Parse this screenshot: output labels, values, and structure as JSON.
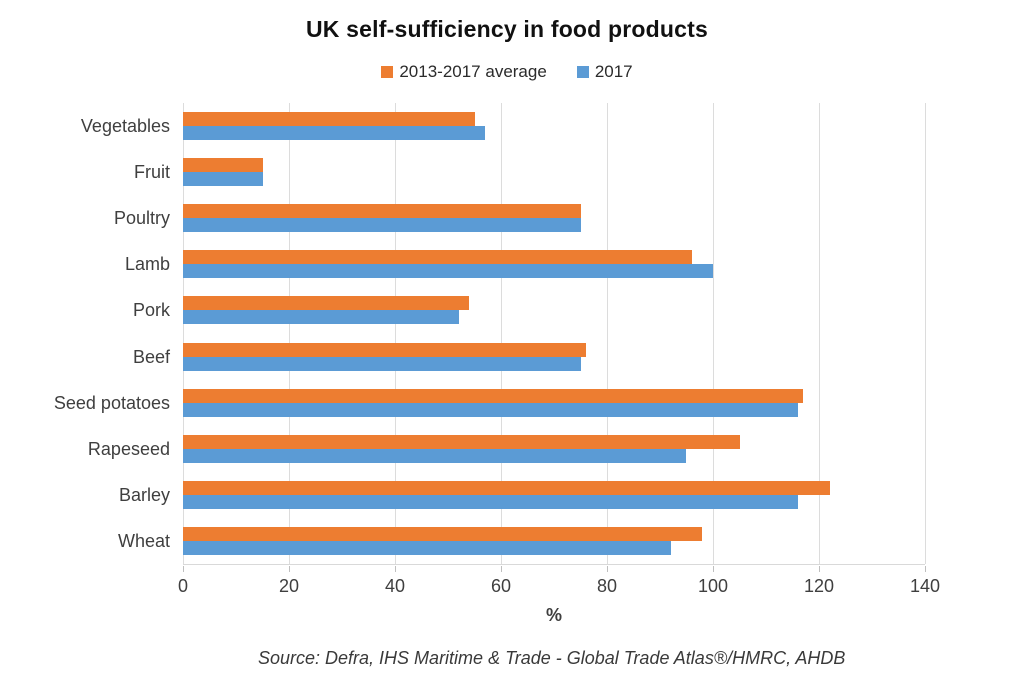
{
  "source": "Source: Defra, IHS Maritime & Trade - Global Trade Atlas®/HMRC, AHDB",
  "chart_data": {
    "type": "bar",
    "orientation": "horizontal",
    "title": "UK self-sufficiency in food products",
    "categories": [
      "Vegetables",
      "Fruit",
      "Poultry",
      "Lamb",
      "Pork",
      "Beef",
      "Seed potatoes",
      "Rapeseed",
      "Barley",
      "Wheat"
    ],
    "series": [
      {
        "name": "2013-2017 average",
        "color": "#ED7D31",
        "values": [
          55,
          15,
          75,
          96,
          54,
          76,
          117,
          105,
          122,
          98
        ]
      },
      {
        "name": "2017",
        "color": "#5B9BD5",
        "values": [
          57,
          15,
          75,
          100,
          52,
          75,
          116,
          95,
          116,
          92
        ]
      }
    ],
    "xlabel": "%",
    "ylabel": "",
    "xlim": [
      0,
      140
    ],
    "xticks": [
      0,
      20,
      40,
      60,
      80,
      100,
      120,
      140
    ],
    "grid": true,
    "legend_position": "top",
    "gridline_color": "#dcdcdc"
  }
}
